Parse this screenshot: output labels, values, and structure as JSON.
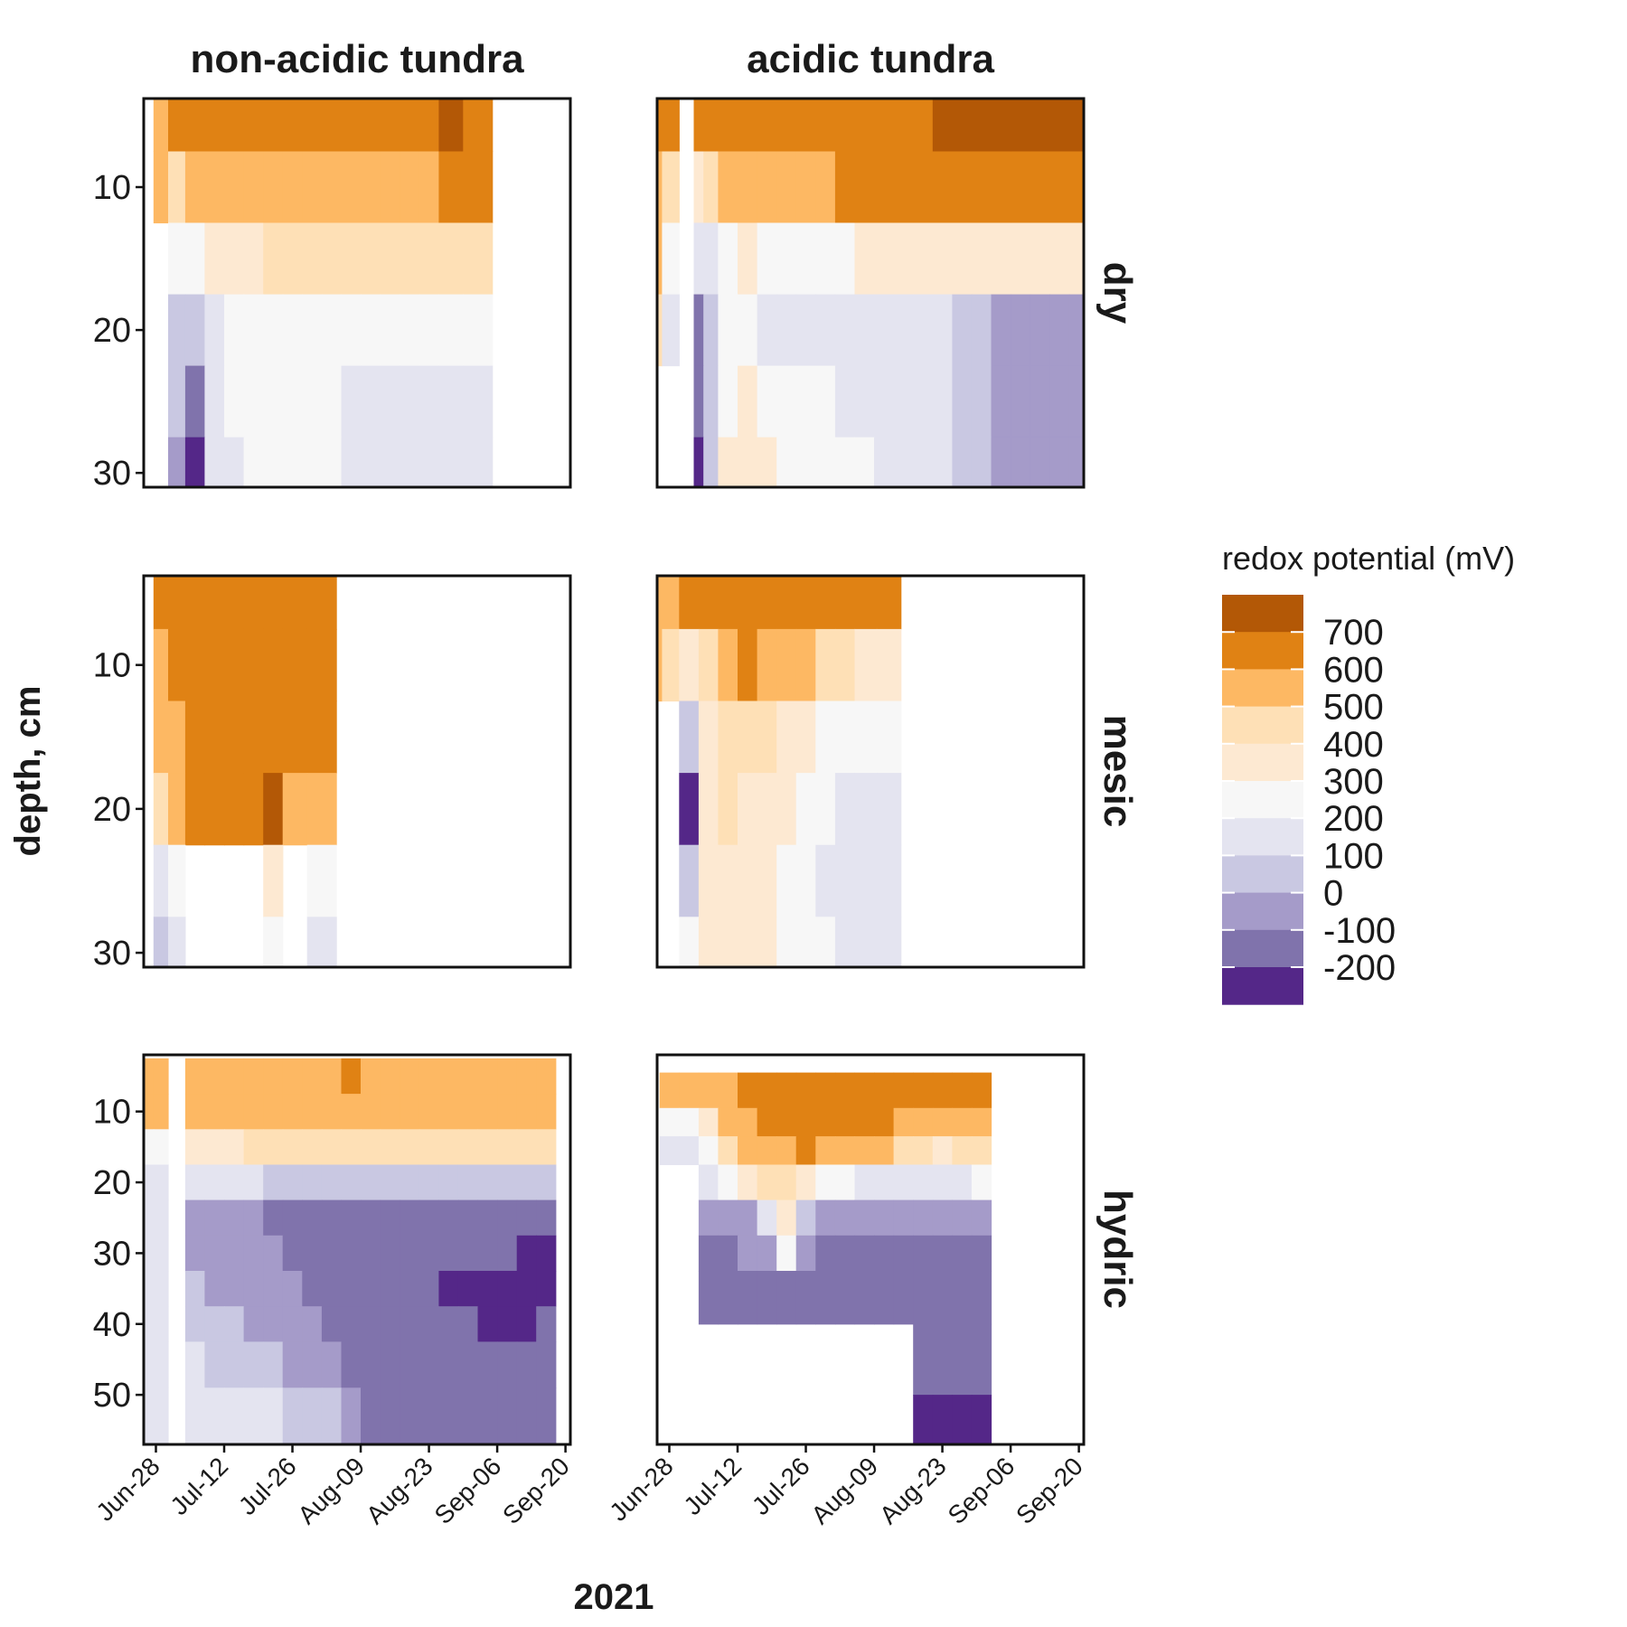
{
  "chart_data": {
    "type": "heatmap",
    "title": "",
    "xlabel": "2021",
    "ylabel": "depth, cm",
    "columns": [
      "non-acidic tundra",
      "acidic tundra"
    ],
    "rows": [
      "dry",
      "mesic",
      "hydric"
    ],
    "x_ticks": [
      "Jun-28",
      "Jul-12",
      "Jul-26",
      "Aug-09",
      "Aug-23",
      "Sep-06",
      "Sep-20"
    ],
    "y_axis_reversed": true,
    "y_ticks": {
      "dry": [
        10,
        20,
        30
      ],
      "mesic": [
        10,
        20,
        30
      ],
      "hydric": [
        10,
        20,
        30,
        40,
        50
      ]
    },
    "y_ranges": {
      "dry": [
        3.8,
        31
      ],
      "mesic": [
        3.8,
        31
      ],
      "hydric": [
        2,
        57
      ]
    },
    "x_range_days": [
      -2.5,
      85
    ],
    "legend": {
      "title": "redox potential (mV)",
      "placement": "right",
      "labels": [
        "700",
        "600",
        "500",
        "400",
        "300",
        "200",
        "100",
        "0",
        "-100",
        "-200"
      ],
      "colors": [
        "#b35806",
        "#e08214",
        "#fdb863",
        "#fee0b6",
        "#fde9d2",
        "#f7f7f7",
        "#e4e4f0",
        "#c9c8e2",
        "#a59bc9",
        "#8073ac",
        "#542788"
      ]
    },
    "panels": [
      {
        "column": "non-acidic tundra",
        "row": "dry",
        "x_days": [
          1,
          4,
          8,
          12,
          16,
          20,
          24,
          28,
          32,
          36,
          40,
          44,
          48,
          52,
          56,
          60,
          66
        ],
        "depths": [
          5,
          10,
          15,
          20,
          25,
          30
        ],
        "values": [
          [
            600,
            620,
            630,
            640,
            650,
            640,
            630,
            630,
            630,
            640,
            640,
            640,
            660,
            680,
            700,
            710,
            700
          ],
          [
            560,
            480,
            520,
            560,
            560,
            540,
            560,
            560,
            560,
            570,
            570,
            570,
            580,
            590,
            600,
            620,
            620
          ],
          [
            null,
            300,
            260,
            390,
            400,
            400,
            410,
            420,
            430,
            440,
            440,
            450,
            450,
            460,
            460,
            470,
            480
          ],
          [
            null,
            90,
            40,
            200,
            260,
            280,
            300,
            300,
            300,
            300,
            300,
            290,
            280,
            270,
            260,
            250,
            240
          ],
          [
            null,
            10,
            -150,
            170,
            210,
            250,
            270,
            260,
            230,
            210,
            200,
            180,
            170,
            160,
            160,
            150,
            150
          ],
          [
            null,
            -80,
            -200,
            150,
            200,
            260,
            280,
            280,
            260,
            220,
            190,
            170,
            150,
            130,
            130,
            120,
            120
          ]
        ]
      },
      {
        "column": "acidic tundra",
        "row": "dry",
        "x_days": [
          -3,
          0,
          4,
          6,
          8,
          12,
          16,
          20,
          24,
          28,
          32,
          36,
          40,
          44,
          48,
          52,
          56,
          60,
          64,
          68,
          72,
          76,
          80,
          84
        ],
        "depths": [
          5,
          10,
          15,
          20,
          25,
          30
        ],
        "values": [
          [
            680,
            680,
            null,
            620,
            640,
            660,
            660,
            670,
            680,
            680,
            690,
            690,
            700,
            700,
            700,
            700,
            710,
            720,
            720,
            720,
            720,
            730,
            740,
            740
          ],
          [
            560,
            480,
            null,
            380,
            420,
            560,
            560,
            580,
            590,
            600,
            600,
            610,
            620,
            620,
            620,
            620,
            630,
            630,
            640,
            640,
            640,
            650,
            660,
            660
          ],
          [
            520,
            280,
            null,
            140,
            180,
            300,
            320,
            300,
            270,
            260,
            270,
            280,
            330,
            380,
            390,
            380,
            380,
            380,
            380,
            380,
            380,
            380,
            380,
            380
          ],
          [
            480,
            200,
            null,
            -120,
            100,
            270,
            260,
            200,
            160,
            150,
            140,
            150,
            170,
            170,
            160,
            140,
            120,
            70,
            20,
            0,
            -20,
            -40,
            -40,
            -40
          ],
          [
            null,
            null,
            null,
            -150,
            100,
            300,
            330,
            300,
            260,
            230,
            210,
            200,
            200,
            180,
            160,
            140,
            110,
            70,
            20,
            0,
            -20,
            -40,
            -40,
            -40
          ],
          [
            null,
            null,
            null,
            -200,
            60,
            310,
            340,
            330,
            300,
            260,
            240,
            220,
            210,
            200,
            180,
            160,
            120,
            80,
            20,
            0,
            -20,
            -40,
            -40,
            -40
          ]
        ]
      },
      {
        "column": "non-acidic tundra",
        "row": "mesic",
        "x_days": [
          1,
          4,
          8,
          12,
          16,
          20,
          24,
          28,
          34
        ],
        "depths": [
          5,
          10,
          15,
          20,
          25,
          30
        ],
        "values": [
          [
            620,
            620,
            640,
            640,
            640,
            640,
            660,
            660,
            680
          ],
          [
            600,
            620,
            640,
            640,
            640,
            640,
            660,
            660,
            680
          ],
          [
            560,
            600,
            640,
            640,
            640,
            660,
            680,
            660,
            660
          ],
          [
            500,
            520,
            640,
            640,
            640,
            700,
            720,
            600,
            600
          ],
          [
            200,
            250,
            null,
            null,
            null,
            null,
            400,
            null,
            300
          ],
          [
            80,
            120,
            null,
            null,
            null,
            null,
            250,
            null,
            120
          ]
        ]
      },
      {
        "column": "acidic tundra",
        "row": "mesic",
        "x_days": [
          -3,
          0,
          4,
          8,
          12,
          16,
          20,
          24,
          28,
          32,
          36,
          40,
          45
        ],
        "depths": [
          5,
          10,
          15,
          20,
          25,
          30
        ],
        "values": [
          [
            600,
            550,
            610,
            640,
            650,
            660,
            670,
            670,
            680,
            700,
            700,
            700,
            700
          ],
          [
            520,
            480,
            330,
            500,
            600,
            620,
            580,
            560,
            540,
            500,
            420,
            380,
            360
          ],
          [
            null,
            null,
            60,
            350,
            480,
            500,
            470,
            400,
            350,
            290,
            250,
            230,
            220
          ],
          [
            null,
            null,
            -200,
            310,
            420,
            400,
            380,
            320,
            280,
            230,
            200,
            180,
            170
          ],
          [
            null,
            null,
            10,
            330,
            400,
            380,
            360,
            300,
            250,
            200,
            180,
            170,
            160
          ],
          [
            null,
            null,
            260,
            350,
            380,
            340,
            320,
            280,
            250,
            220,
            180,
            170,
            160
          ]
        ]
      },
      {
        "column": "non-acidic tundra",
        "row": "hydric",
        "x_days": [
          -2,
          1,
          4,
          8,
          12,
          16,
          20,
          24,
          28,
          32,
          36,
          40,
          44,
          48,
          52,
          56,
          60,
          64,
          68,
          72,
          76,
          80
        ],
        "depths": [
          5,
          10,
          15,
          20,
          25,
          30,
          35,
          40,
          45,
          53
        ],
        "values": [
          [
            600,
            600,
            null,
            560,
            580,
            590,
            600,
            600,
            600,
            600,
            600,
            610,
            600,
            560,
            560,
            560,
            560,
            570,
            560,
            560,
            560,
            570
          ],
          [
            560,
            540,
            null,
            520,
            540,
            550,
            560,
            560,
            560,
            560,
            560,
            560,
            540,
            540,
            540,
            540,
            540,
            540,
            540,
            540,
            540,
            540
          ],
          [
            300,
            300,
            null,
            320,
            380,
            400,
            420,
            420,
            420,
            420,
            420,
            420,
            420,
            420,
            420,
            420,
            420,
            420,
            420,
            420,
            420,
            420
          ],
          [
            200,
            190,
            null,
            120,
            120,
            110,
            110,
            100,
            100,
            90,
            90,
            90,
            90,
            90,
            90,
            90,
            90,
            90,
            90,
            90,
            90,
            90
          ],
          [
            170,
            160,
            null,
            -60,
            -60,
            -70,
            -80,
            -100,
            -120,
            -130,
            -130,
            -130,
            -130,
            -130,
            -130,
            -130,
            -130,
            -130,
            -130,
            -130,
            -130,
            -130
          ],
          [
            160,
            150,
            null,
            -20,
            -40,
            -50,
            -60,
            -80,
            -100,
            -120,
            -130,
            -130,
            -130,
            -130,
            -130,
            -130,
            -130,
            -130,
            -150,
            -180,
            -220,
            -200
          ],
          [
            150,
            140,
            null,
            20,
            0,
            -20,
            -40,
            -60,
            -80,
            -110,
            -130,
            -130,
            -130,
            -130,
            -140,
            -170,
            -200,
            -210,
            -230,
            -240,
            -230,
            -220
          ],
          [
            140,
            130,
            null,
            60,
            40,
            20,
            0,
            -20,
            -50,
            -90,
            -120,
            -130,
            -130,
            -130,
            -130,
            -140,
            -160,
            -180,
            -200,
            -210,
            -200,
            -190
          ],
          [
            150,
            140,
            null,
            110,
            90,
            70,
            50,
            20,
            0,
            -40,
            -80,
            -110,
            -130,
            -130,
            -130,
            -130,
            -130,
            -140,
            -150,
            -150,
            -150,
            -150
          ],
          [
            200,
            200,
            null,
            200,
            180,
            160,
            140,
            120,
            100,
            60,
            20,
            -60,
            -110,
            -130,
            -130,
            -130,
            -130,
            -130,
            -130,
            -130,
            -130,
            -130
          ]
        ]
      },
      {
        "column": "acidic tundra",
        "row": "hydric",
        "x_days": [
          0,
          4,
          8,
          12,
          16,
          20,
          24,
          28,
          32,
          36,
          40,
          44,
          48,
          52,
          56,
          60,
          64
        ],
        "depths": [
          7,
          12,
          15,
          20,
          25,
          30,
          35,
          45,
          55
        ],
        "values": [
          [
            560,
            560,
            580,
            600,
            640,
            660,
            680,
            680,
            660,
            660,
            660,
            660,
            660,
            660,
            660,
            660,
            660
          ],
          [
            250,
            300,
            400,
            520,
            600,
            620,
            640,
            640,
            640,
            640,
            640,
            620,
            600,
            560,
            540,
            560,
            560
          ],
          [
            150,
            200,
            300,
            480,
            560,
            520,
            600,
            620,
            600,
            580,
            560,
            520,
            480,
            420,
            380,
            420,
            500
          ],
          [
            null,
            null,
            200,
            280,
            320,
            420,
            460,
            380,
            280,
            230,
            200,
            170,
            150,
            130,
            150,
            200,
            220
          ],
          [
            null,
            null,
            -40,
            -40,
            -20,
            120,
            320,
            100,
            -40,
            -60,
            -80,
            -80,
            -80,
            -80,
            -80,
            -80,
            -80
          ],
          [
            null,
            null,
            -100,
            -100,
            -80,
            -40,
            250,
            -40,
            -100,
            -100,
            -100,
            -100,
            -100,
            -140,
            -140,
            -140,
            -140
          ],
          [
            null,
            null,
            -160,
            -160,
            -160,
            -140,
            -130,
            -120,
            -120,
            -120,
            -120,
            -120,
            -120,
            -160,
            -160,
            -160,
            -160
          ],
          [
            null,
            null,
            null,
            null,
            null,
            null,
            null,
            null,
            null,
            null,
            null,
            null,
            null,
            -120,
            -120,
            -120,
            -120
          ],
          [
            null,
            null,
            null,
            null,
            null,
            null,
            null,
            null,
            null,
            null,
            null,
            null,
            null,
            -200,
            -200,
            -200,
            -200
          ]
        ]
      }
    ]
  }
}
